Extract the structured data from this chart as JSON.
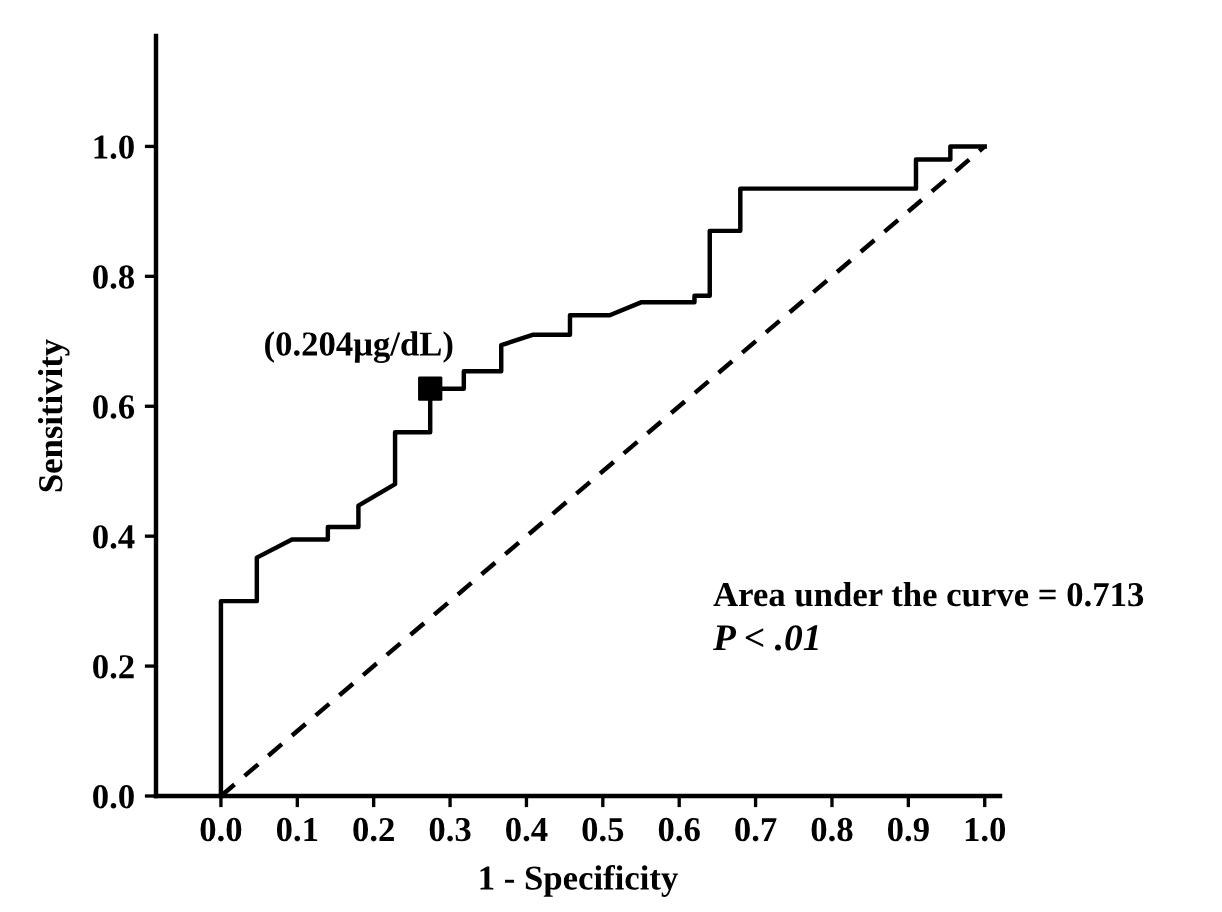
{
  "chart_data": {
    "type": "line",
    "xlabel": "1 - Specificity",
    "ylabel": "Sensitivity",
    "xlim": [
      -0.085,
      1.02
    ],
    "ylim": [
      0,
      1.17
    ],
    "xticks": [
      {
        "value": 0,
        "label": "0.0"
      },
      0.1,
      0.2,
      0.3,
      0.4,
      0.5,
      0.6,
      0.7,
      0.8,
      0.9,
      {
        "value": 1,
        "label": "1.0"
      }
    ],
    "yticks": [
      {
        "value": 0,
        "label": "0.0"
      },
      0.2,
      0.4,
      0.6,
      0.8,
      {
        "value": 1,
        "label": "1.0"
      }
    ],
    "grid": false,
    "legend": false,
    "series": [
      {
        "color": "#000000",
        "line_style": "solid",
        "marker": "none",
        "x": [
          0,
          0,
          0.047,
          0.047,
          0.093,
          0.14,
          0.14,
          0.18,
          0.18,
          0.228,
          0.228,
          0.274,
          0.274,
          0.318,
          0.318,
          0.367,
          0.367,
          0.408,
          0.457,
          0.457,
          0.509,
          0.55,
          0.62,
          0.62,
          0.64,
          0.64,
          0.68,
          0.68,
          0.91,
          0.91,
          0.955,
          0.955,
          1.0
        ],
        "values": [
          0,
          0.3,
          0.3,
          0.367,
          0.395,
          0.395,
          0.414,
          0.414,
          0.447,
          0.48,
          0.56,
          0.56,
          0.627,
          0.627,
          0.654,
          0.654,
          0.694,
          0.71,
          0.71,
          0.74,
          0.74,
          0.76,
          0.76,
          0.77,
          0.77,
          0.87,
          0.87,
          0.935,
          0.935,
          0.98,
          0.98,
          1.0,
          1.0
        ]
      },
      {
        "color": "#000000",
        "line_style": "dashed",
        "marker": "none",
        "x": [
          0,
          1
        ],
        "values": [
          0,
          1
        ]
      },
      {
        "type": "scatter",
        "color": "#000000",
        "marker": "square",
        "x": [
          0.274
        ],
        "values": [
          0.627
        ]
      }
    ],
    "annotations": [
      {
        "text": "(0.204μg/dL)",
        "x": 0.274,
        "y": 0.627
      },
      "Area under the curve = 0.713",
      "P < .01"
    ]
  }
}
